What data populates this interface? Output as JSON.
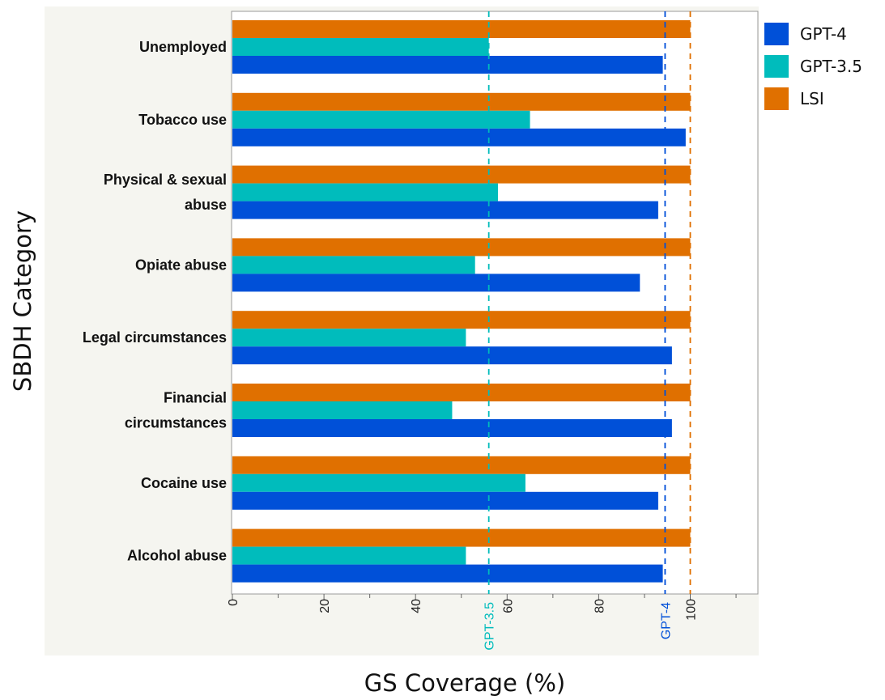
{
  "chart_data": {
    "type": "bar",
    "orientation": "horizontal",
    "categories": [
      "Unemployed",
      "Tobacco use",
      "Physical & sexual abuse",
      "Opiate abuse",
      "Legal circumstances",
      "Financial circumstances",
      "Cocaine use",
      "Alcohol abuse"
    ],
    "category_lines": [
      [
        "Unemployed"
      ],
      [
        "Tobacco use"
      ],
      [
        "Physical & sexual",
        "abuse"
      ],
      [
        "Opiate abuse"
      ],
      [
        "Legal circumstances"
      ],
      [
        "Financial",
        "circumstances"
      ],
      [
        "Cocaine use"
      ],
      [
        "Alcohol abuse"
      ]
    ],
    "series": [
      {
        "name": "LSI",
        "color": "#e07000",
        "values": [
          100,
          100,
          100,
          100,
          100,
          100,
          100,
          100
        ]
      },
      {
        "name": "GPT-3.5",
        "color": "#00bcbc",
        "values": [
          56,
          65,
          58,
          53,
          51,
          48,
          64,
          51
        ]
      },
      {
        "name": "GPT-4",
        "color": "#0050d8",
        "values": [
          94,
          99,
          93,
          89,
          96,
          96,
          93,
          94
        ]
      }
    ],
    "legend_order": [
      "GPT-4",
      "GPT-3.5",
      "LSI"
    ],
    "legend_position": "right",
    "reference_lines": [
      {
        "label": "GPT-3.5",
        "value": 56,
        "color": "#00bcbc"
      },
      {
        "label": "GPT-4",
        "value": 94.5,
        "color": "#0050d8"
      },
      {
        "label": "",
        "value": 100,
        "color": "#e07000"
      }
    ],
    "xlabel": "GS Coverage (%)",
    "ylabel": "SBDH Category",
    "xlim": [
      0,
      115
    ],
    "xticks": [
      0,
      20,
      40,
      60,
      80,
      100
    ],
    "grid": false
  }
}
